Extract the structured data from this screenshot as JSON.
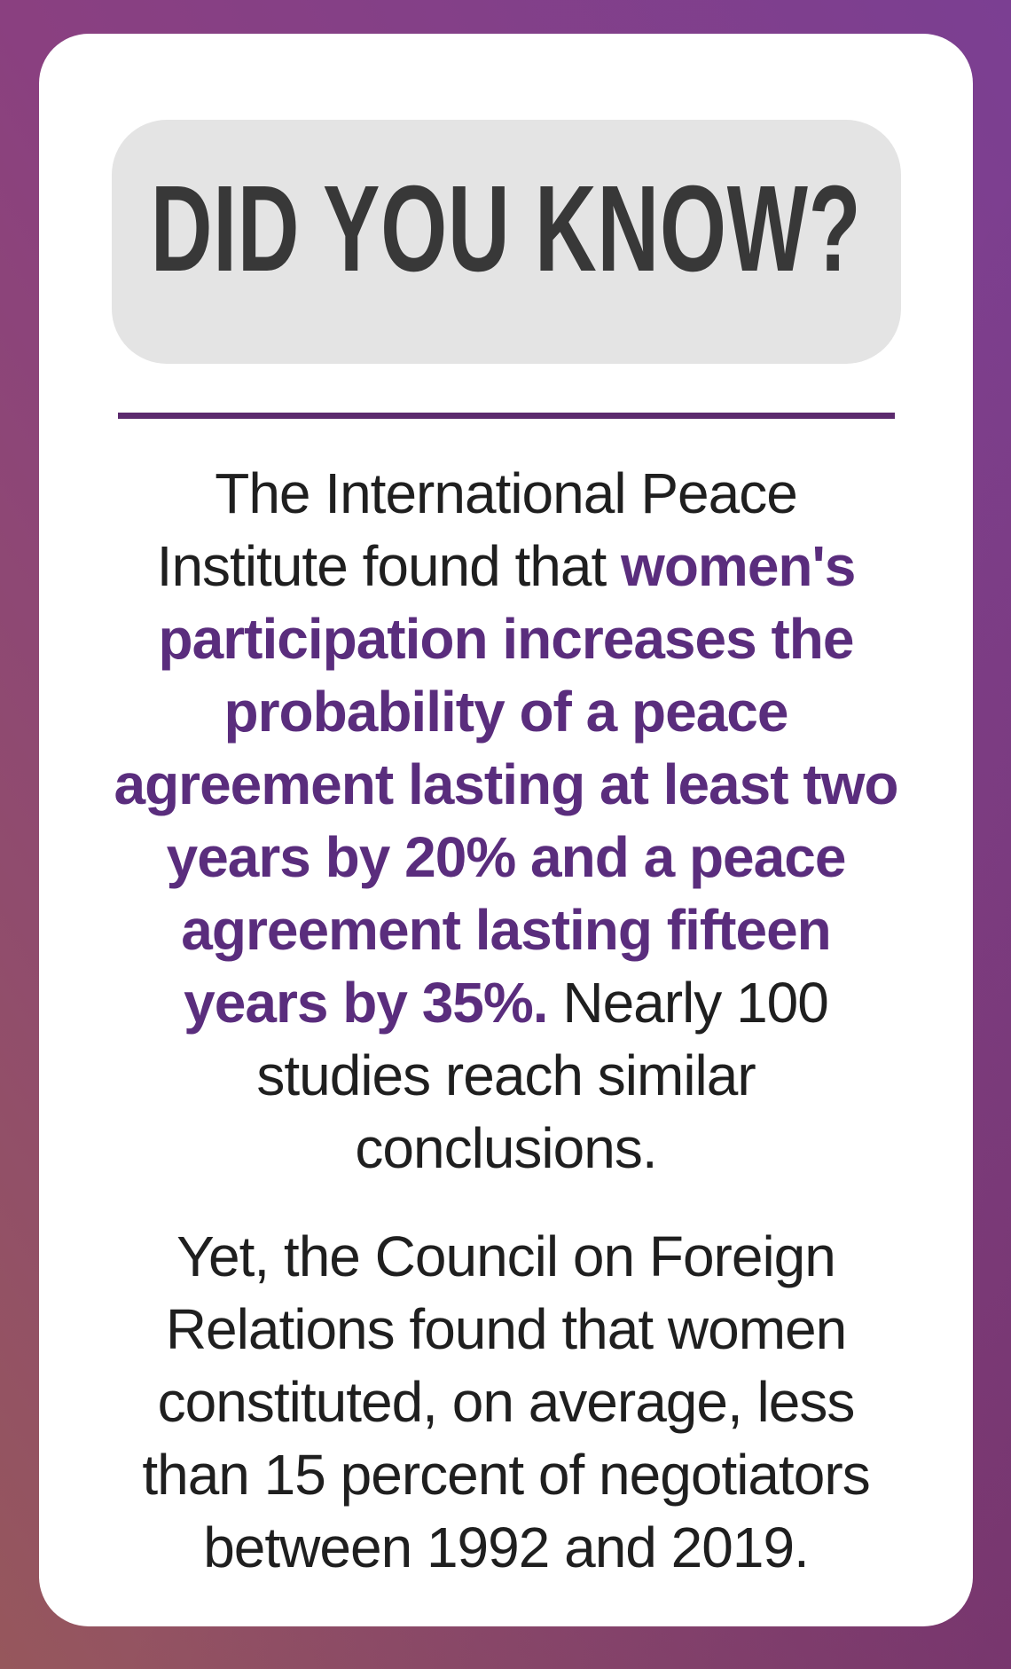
{
  "card": {
    "heading": "DID YOU KNOW?",
    "paragraph1": {
      "segments": [
        {
          "text": "The International Peace\nInstitute found that ",
          "style": "normal"
        },
        {
          "text": "women's\nparticipation increases the\nprobability of a peace\nagreement lasting at least two\nyears by 20% and a peace\nagreement lasting fifteen\nyears by 35%.",
          "style": "highlight"
        },
        {
          "text": " Nearly 100\nstudies reach similar\nconclusions.",
          "style": "normal"
        }
      ]
    },
    "paragraph2": "Yet, the Council on Foreign\nRelations found that women\nconstituted, on average, less\nthan 15 percent of negotiators\nbetween 1992 and 2019.",
    "stats": {
      "two_year_increase": "20%",
      "fifteen_year_increase": "35%",
      "similar_studies_count": "Nearly 100",
      "negotiator_share": "less than 15 percent",
      "period": "1992 and 2019"
    }
  },
  "colors": {
    "background_top_left": "#8a4080",
    "background_top_right": "#7b3f92",
    "background_bottom_left": "#96575c",
    "background_bottom_right": "#7d4470",
    "card_background": "#ffffff",
    "pill_background": "#e4e4e4",
    "heading_text": "#383838",
    "body_text": "#1f1f1f",
    "highlight_text": "#5a2d7d",
    "divider": "#5c2a6e"
  }
}
